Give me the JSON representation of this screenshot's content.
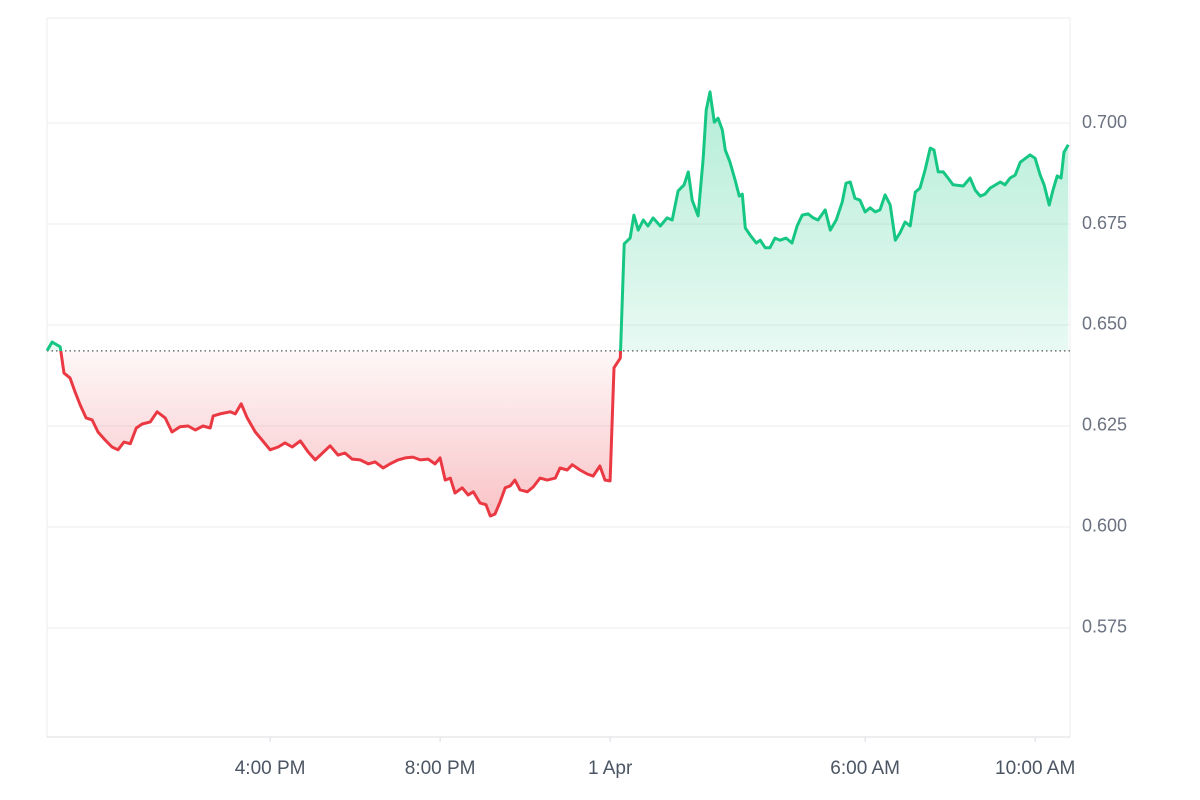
{
  "chart_data": {
    "type": "line",
    "x": [
      -13.25,
      -13.13,
      -12.94,
      -12.85,
      -12.71,
      -12.59,
      -12.47,
      -12.33,
      -12.19,
      -12.05,
      -11.88,
      -11.72,
      -11.58,
      -11.44,
      -11.29,
      -11.15,
      -11.01,
      -10.82,
      -10.66,
      -10.47,
      -10.31,
      -10.12,
      -9.93,
      -9.76,
      -9.58,
      -9.41,
      -9.34,
      -9.18,
      -8.94,
      -8.82,
      -8.68,
      -8.54,
      -8.35,
      -8.19,
      -8.0,
      -7.81,
      -7.65,
      -7.48,
      -7.29,
      -7.11,
      -6.94,
      -6.82,
      -6.59,
      -6.4,
      -6.24,
      -6.07,
      -5.88,
      -5.69,
      -5.53,
      -5.34,
      -5.18,
      -4.99,
      -4.82,
      -4.64,
      -4.47,
      -4.28,
      -4.12,
      -4.0,
      -3.88,
      -3.76,
      -3.65,
      -3.48,
      -3.34,
      -3.22,
      -3.06,
      -2.92,
      -2.82,
      -2.71,
      -2.59,
      -2.47,
      -2.35,
      -2.24,
      -2.12,
      -1.95,
      -1.81,
      -1.65,
      -1.48,
      -1.29,
      -1.18,
      -1.01,
      -0.89,
      -0.71,
      -0.54,
      -0.4,
      -0.24,
      -0.12,
      0.0,
      0.09,
      0.24,
      0.33,
      0.47,
      0.56,
      0.66,
      0.78,
      0.89,
      1.01,
      1.18,
      1.34,
      1.46,
      1.6,
      1.74,
      1.84,
      1.93,
      2.07,
      2.19,
      2.26,
      2.35,
      2.45,
      2.54,
      2.64,
      2.71,
      2.82,
      2.94,
      3.04,
      3.11,
      3.18,
      3.29,
      3.44,
      3.53,
      3.65,
      3.76,
      3.88,
      4.0,
      4.14,
      4.28,
      4.4,
      4.52,
      4.66,
      4.78,
      4.89,
      5.06,
      5.18,
      5.32,
      5.46,
      5.55,
      5.65,
      5.76,
      5.88,
      6.0,
      6.12,
      6.24,
      6.35,
      6.47,
      6.59,
      6.71,
      6.82,
      6.94,
      7.06,
      7.18,
      7.29,
      7.41,
      7.53,
      7.62,
      7.72,
      7.84,
      7.95,
      8.07,
      8.31,
      8.47,
      8.59,
      8.71,
      8.82,
      8.94,
      9.18,
      9.29,
      9.41,
      9.53,
      9.65,
      9.88,
      10.0,
      10.12,
      10.21,
      10.33,
      10.42,
      10.52,
      10.61,
      10.68,
      10.78
    ],
    "values": [
      0.6436,
      0.6458,
      0.6446,
      0.6381,
      0.6369,
      0.6334,
      0.6302,
      0.627,
      0.6265,
      0.6235,
      0.6215,
      0.6198,
      0.6191,
      0.621,
      0.6206,
      0.6245,
      0.6255,
      0.626,
      0.6285,
      0.627,
      0.6235,
      0.6248,
      0.625,
      0.624,
      0.625,
      0.6245,
      0.6275,
      0.628,
      0.6285,
      0.628,
      0.6305,
      0.627,
      0.6235,
      0.6215,
      0.6191,
      0.6198,
      0.6208,
      0.6198,
      0.6213,
      0.6186,
      0.6166,
      0.6178,
      0.6201,
      0.6178,
      0.6183,
      0.6168,
      0.6166,
      0.6156,
      0.6161,
      0.6146,
      0.6156,
      0.6166,
      0.6171,
      0.6173,
      0.6166,
      0.6168,
      0.6156,
      0.6171,
      0.6116,
      0.6121,
      0.6084,
      0.6097,
      0.6079,
      0.6087,
      0.6059,
      0.6055,
      0.6027,
      0.6032,
      0.6062,
      0.6097,
      0.6102,
      0.6116,
      0.6092,
      0.6087,
      0.6099,
      0.6121,
      0.6116,
      0.6121,
      0.6146,
      0.6141,
      0.6154,
      0.6141,
      0.6131,
      0.6126,
      0.6151,
      0.6116,
      0.6114,
      0.6394,
      0.6418,
      0.6701,
      0.6715,
      0.6772,
      0.6735,
      0.676,
      0.6745,
      0.6765,
      0.6745,
      0.6765,
      0.676,
      0.6832,
      0.6847,
      0.6879,
      0.6809,
      0.677,
      0.6913,
      0.7032,
      0.7077,
      0.7002,
      0.7012,
      0.6983,
      0.6933,
      0.6903,
      0.6859,
      0.6819,
      0.6824,
      0.674,
      0.6723,
      0.6703,
      0.671,
      0.6691,
      0.6691,
      0.6715,
      0.671,
      0.6715,
      0.6703,
      0.6745,
      0.6772,
      0.6775,
      0.6765,
      0.676,
      0.6785,
      0.6735,
      0.676,
      0.6804,
      0.6851,
      0.6854,
      0.6814,
      0.6809,
      0.678,
      0.679,
      0.678,
      0.6785,
      0.6822,
      0.6797,
      0.671,
      0.6728,
      0.6755,
      0.6745,
      0.6829,
      0.6839,
      0.6884,
      0.6938,
      0.6933,
      0.6879,
      0.6879,
      0.6864,
      0.6847,
      0.6844,
      0.6864,
      0.6834,
      0.6819,
      0.6824,
      0.6839,
      0.6854,
      0.6847,
      0.6864,
      0.6871,
      0.6903,
      0.6921,
      0.6913,
      0.6871,
      0.6847,
      0.6797,
      0.6834,
      0.6869,
      0.6864,
      0.6928,
      0.6946
    ],
    "baseline": 0.6436,
    "up_color": "#16c784",
    "down_color": "#ea3943",
    "xlim": [
      -13.25,
      10.82
    ],
    "xticks": [
      {
        "value": -8,
        "label": "4:00 PM"
      },
      {
        "value": -4,
        "label": "8:00 PM"
      },
      {
        "value": 0,
        "label": "1 Apr"
      },
      {
        "value": 6,
        "label": "6:00 AM"
      },
      {
        "value": 10,
        "label": "10:00 AM"
      }
    ],
    "ylim": [
      0.548,
      0.726
    ],
    "yticks": [
      0.575,
      {
        "value": 0.6,
        "label": "0.600"
      },
      0.625,
      {
        "value": 0.65,
        "label": "0.650"
      },
      0.675,
      {
        "value": 0.7,
        "label": "0.700"
      }
    ],
    "grid": true
  }
}
